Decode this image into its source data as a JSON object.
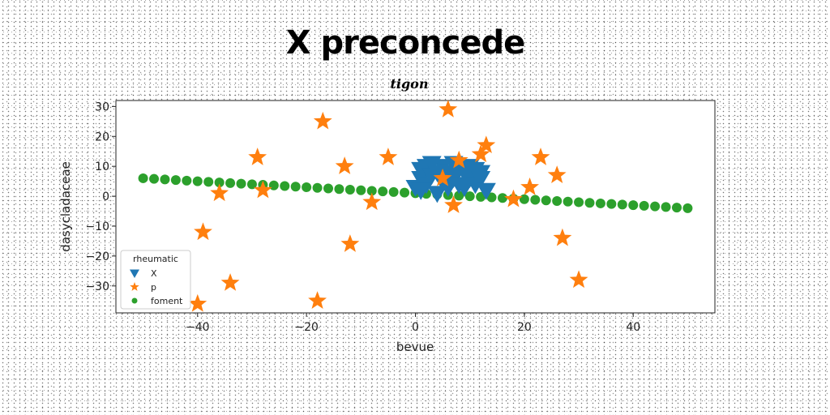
{
  "chart_data": {
    "type": "scatter",
    "title": "X preconcede",
    "subtitle": "tigon",
    "xlabel": "bevue",
    "ylabel": "dasycladaceae",
    "xlim": [
      -55,
      55
    ],
    "ylim": [
      -39,
      32
    ],
    "xticks": [
      -40,
      -20,
      0,
      20,
      40
    ],
    "yticks": [
      -30,
      -20,
      -10,
      0,
      10,
      20,
      30
    ],
    "xtick_labels": [
      "−40",
      "−20",
      "0",
      "20",
      "40"
    ],
    "ytick_labels": [
      "−30",
      "−20",
      "−10",
      "0",
      "10",
      "20",
      "30"
    ],
    "grid": false,
    "legend": {
      "title": "rheumatic",
      "placement": "lower-left"
    },
    "series": [
      {
        "name": "X",
        "marker": "triangle-down",
        "color": "#1f77b4",
        "points": [
          [
            0,
            3
          ],
          [
            1,
            9
          ],
          [
            1,
            6
          ],
          [
            2,
            10
          ],
          [
            2,
            4
          ],
          [
            3,
            7
          ],
          [
            4,
            8
          ],
          [
            5,
            10
          ],
          [
            5,
            5
          ],
          [
            6,
            3
          ],
          [
            6,
            8
          ],
          [
            7,
            11
          ],
          [
            7,
            6
          ],
          [
            8,
            9
          ],
          [
            8,
            4
          ],
          [
            9,
            8
          ],
          [
            9,
            3
          ],
          [
            10,
            10
          ],
          [
            10,
            6
          ],
          [
            11,
            9
          ],
          [
            11,
            4
          ],
          [
            12,
            8
          ],
          [
            12,
            6
          ],
          [
            13,
            2
          ],
          [
            1,
            2
          ],
          [
            3,
            11
          ],
          [
            4,
            1
          ]
        ]
      },
      {
        "name": "p",
        "marker": "star",
        "color": "#ff7f0e",
        "points": [
          [
            -40,
            -36
          ],
          [
            -39,
            -12
          ],
          [
            -36,
            1
          ],
          [
            -34,
            -29
          ],
          [
            -29,
            13
          ],
          [
            -28,
            2
          ],
          [
            -18,
            -35
          ],
          [
            -17,
            25
          ],
          [
            -13,
            10
          ],
          [
            -12,
            -16
          ],
          [
            -8,
            -2
          ],
          [
            -5,
            13
          ],
          [
            5,
            6
          ],
          [
            6,
            29
          ],
          [
            7,
            -3
          ],
          [
            8,
            12
          ],
          [
            12,
            14
          ],
          [
            13,
            17
          ],
          [
            18,
            -1
          ],
          [
            21,
            3
          ],
          [
            23,
            13
          ],
          [
            26,
            7
          ],
          [
            27,
            -14
          ],
          [
            30,
            -28
          ]
        ]
      },
      {
        "name": "foment",
        "marker": "circle",
        "color": "#2ca02c",
        "x_start": -50,
        "x_end": 50,
        "count": 51,
        "y_start": 6,
        "y_end": -4
      }
    ]
  }
}
